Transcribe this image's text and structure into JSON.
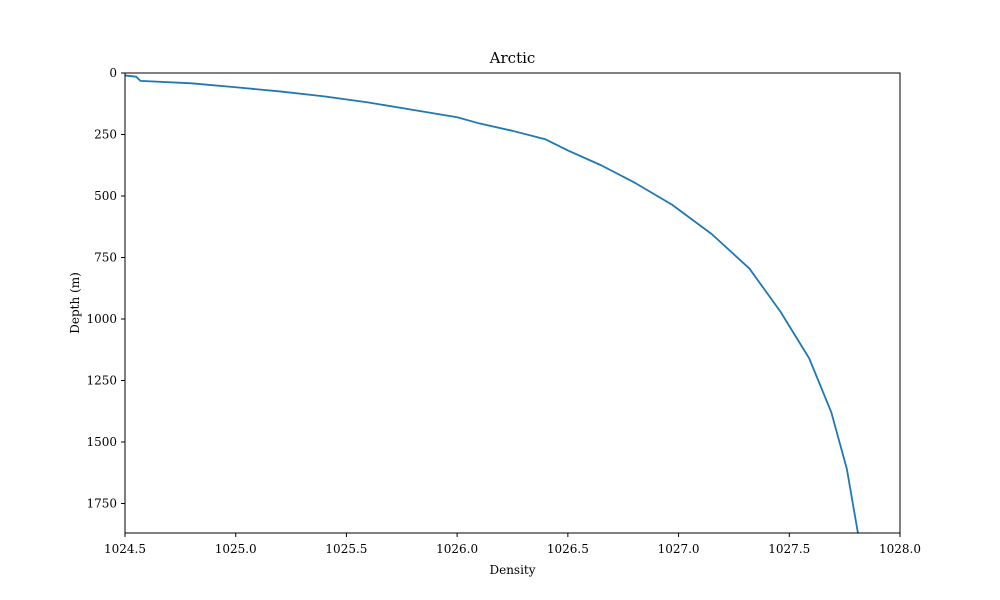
{
  "chart_data": {
    "type": "line",
    "title": "Arctic",
    "xlabel": "Density",
    "ylabel": "Depth (m)",
    "xlim": [
      1024.5,
      1028.0
    ],
    "ylim": [
      1870,
      0
    ],
    "y_inverted": true,
    "grid": false,
    "legend": "none",
    "xticks": [
      "1024.5",
      "1025.0",
      "1025.5",
      "1026.0",
      "1026.5",
      "1027.0",
      "1027.5",
      "1028.0"
    ],
    "yticks": [
      "0",
      "250",
      "500",
      "750",
      "1000",
      "1250",
      "1500",
      "1750"
    ],
    "series": [
      {
        "color": "#1f77b4",
        "x": [
          1024.5,
          1024.55,
          1024.57,
          1024.8,
          1025.0,
          1025.2,
          1025.4,
          1025.6,
          1025.8,
          1026.0,
          1026.1,
          1026.25,
          1026.4,
          1026.5,
          1026.65,
          1026.8,
          1026.97,
          1027.15,
          1027.32,
          1027.46,
          1027.59,
          1027.69,
          1027.76,
          1027.81
        ],
        "y": [
          10,
          15,
          32,
          42,
          58,
          75,
          95,
          120,
          150,
          180,
          205,
          235,
          270,
          315,
          375,
          445,
          535,
          655,
          795,
          970,
          1160,
          1380,
          1610,
          1870
        ]
      }
    ]
  }
}
